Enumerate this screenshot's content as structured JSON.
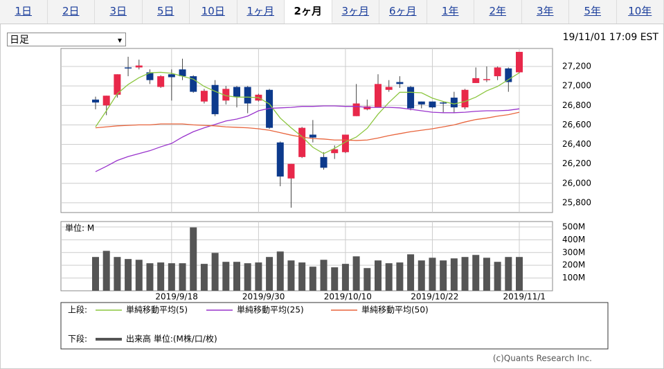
{
  "tabs": [
    "1日",
    "2日",
    "3日",
    "5日",
    "10日",
    "1ヶ月",
    "2ヶ月",
    "3ヶ月",
    "6ヶ月",
    "1年",
    "2年",
    "3年",
    "5年",
    "10年"
  ],
  "selected_tab": 6,
  "dropdown": "日足",
  "timestamp": "19/11/01 17:09 EST",
  "copyright": "(c)Quants Research Inc.",
  "chart_data": [
    {
      "type": "candlestick",
      "categories": [
        null,
        null,
        null,
        null,
        null,
        null,
        null,
        "2019/9/18",
        null,
        null,
        null,
        null,
        null,
        null,
        null,
        "2019/9/30",
        null,
        null,
        null,
        null,
        null,
        null,
        null,
        "2019/10/10",
        null,
        null,
        null,
        null,
        null,
        null,
        null,
        "2019/10/22",
        null,
        null,
        null,
        null,
        null,
        null,
        null,
        "2019/11/1"
      ],
      "open": [
        26860,
        26800,
        26910,
        27190,
        27190,
        27140,
        26990,
        27120,
        27170,
        27100,
        26840,
        27010,
        26850,
        26990,
        26990,
        26850,
        26960,
        26420,
        26050,
        26270,
        26500,
        26270,
        26310,
        26320,
        26690,
        26760,
        26780,
        26960,
        27040,
        26990,
        26840,
        26840,
        26830,
        26880,
        26780,
        27030,
        27060,
        27100,
        27180,
        27140
      ],
      "high": [
        26890,
        26900,
        27120,
        27300,
        27270,
        27170,
        27110,
        27170,
        27280,
        27110,
        26970,
        27060,
        27000,
        27000,
        27000,
        26920,
        26970,
        26430,
        26200,
        26580,
        26650,
        26320,
        26390,
        26500,
        27020,
        26860,
        27120,
        27060,
        27100,
        27000,
        26840,
        26840,
        26840,
        26940,
        26970,
        27190,
        27200,
        27200,
        27190,
        27350
      ],
      "low": [
        26760,
        26700,
        26880,
        27100,
        27170,
        27020,
        26980,
        26850,
        27060,
        26930,
        26820,
        26690,
        26810,
        26780,
        26720,
        26840,
        26560,
        25970,
        25750,
        26260,
        26420,
        26140,
        26250,
        26310,
        26690,
        26750,
        26780,
        26940,
        26980,
        26750,
        26770,
        26770,
        26730,
        26720,
        26760,
        27030,
        27040,
        27060,
        26940,
        27130
      ],
      "close": [
        26830,
        26900,
        27120,
        27180,
        27210,
        27060,
        27100,
        27090,
        27100,
        26940,
        26950,
        26710,
        26970,
        26890,
        26820,
        26910,
        26570,
        26070,
        26200,
        26570,
        26470,
        26160,
        26350,
        26500,
        26820,
        26790,
        27020,
        26990,
        27020,
        26770,
        26810,
        26780,
        26820,
        26780,
        26960,
        27080,
        27070,
        27190,
        27040,
        27350
      ],
      "up_color": "#e8284a",
      "down_color": "#0d3a8c",
      "legend_title": "上段:",
      "series": [
        {
          "name": "単純移動平均(5)",
          "color": "#8cc63f",
          "values": [
            26580,
            26745,
            26920,
            27015,
            27085,
            27135,
            27140,
            27130,
            27100,
            27070,
            26995,
            26945,
            26900,
            26885,
            26885,
            26880,
            26815,
            26670,
            26570,
            26480,
            26370,
            26305,
            26360,
            26425,
            26475,
            26565,
            26710,
            26830,
            26935,
            26935,
            26930,
            26875,
            26840,
            26815,
            26840,
            26885,
            26950,
            26995,
            27065,
            27135
          ]
        },
        {
          "name": "単純移動平均(25)",
          "color": "#9933cc",
          "values": [
            26120,
            26175,
            26235,
            26275,
            26305,
            26335,
            26375,
            26410,
            26475,
            26530,
            26570,
            26605,
            26640,
            26660,
            26690,
            26745,
            26770,
            26775,
            26780,
            26790,
            26790,
            26795,
            26795,
            26790,
            26790,
            26780,
            26780,
            26780,
            26775,
            26760,
            26745,
            26730,
            26725,
            26725,
            26730,
            26740,
            26745,
            26745,
            26750,
            26765
          ]
        },
        {
          "name": "単純移動平均(50)",
          "color": "#e8643c",
          "values": [
            26570,
            26580,
            26590,
            26595,
            26600,
            26600,
            26610,
            26610,
            26610,
            26600,
            26595,
            26590,
            26580,
            26575,
            26570,
            26560,
            26545,
            26520,
            26495,
            26475,
            26460,
            26455,
            26445,
            26445,
            26440,
            26445,
            26465,
            26490,
            26510,
            26530,
            26545,
            26560,
            26580,
            26600,
            26630,
            26655,
            26670,
            26690,
            26705,
            26730
          ]
        }
      ],
      "ylim": [
        25700,
        27385
      ],
      "yticks": [
        {
          "value": 25800,
          "label": "25,800"
        },
        {
          "value": 26000,
          "label": "26,000"
        },
        {
          "value": 26200,
          "label": "26,200"
        },
        {
          "value": 26400,
          "label": "26,400"
        },
        {
          "value": 26600,
          "label": "26,600"
        },
        {
          "value": 26800,
          "label": "26,800"
        },
        {
          "value": 27000,
          "label": "27,000"
        },
        {
          "value": 27200,
          "label": "27,200"
        }
      ],
      "grid": true
    },
    {
      "type": "bar",
      "unit_label": "単位: M",
      "legend_title": "下段:",
      "series": [
        {
          "name": "出来高 単位:(M株/口/枚)",
          "color": "#555555",
          "values": [
            265,
            313,
            265,
            249,
            243,
            216,
            222,
            216,
            216,
            497,
            211,
            297,
            227,
            227,
            216,
            222,
            265,
            308,
            238,
            222,
            189,
            243,
            184,
            211,
            270,
            178,
            238,
            216,
            222,
            286,
            238,
            259,
            238,
            254,
            265,
            281,
            259,
            227,
            265,
            265
          ]
        }
      ],
      "ylim": [
        0,
        543
      ],
      "yticks": [
        {
          "value": 100,
          "label": "100M"
        },
        {
          "value": 200,
          "label": "200M"
        },
        {
          "value": 300,
          "label": "300M"
        },
        {
          "value": 400,
          "label": "400M"
        },
        {
          "value": 500,
          "label": "500M"
        }
      ],
      "grid": true
    }
  ]
}
